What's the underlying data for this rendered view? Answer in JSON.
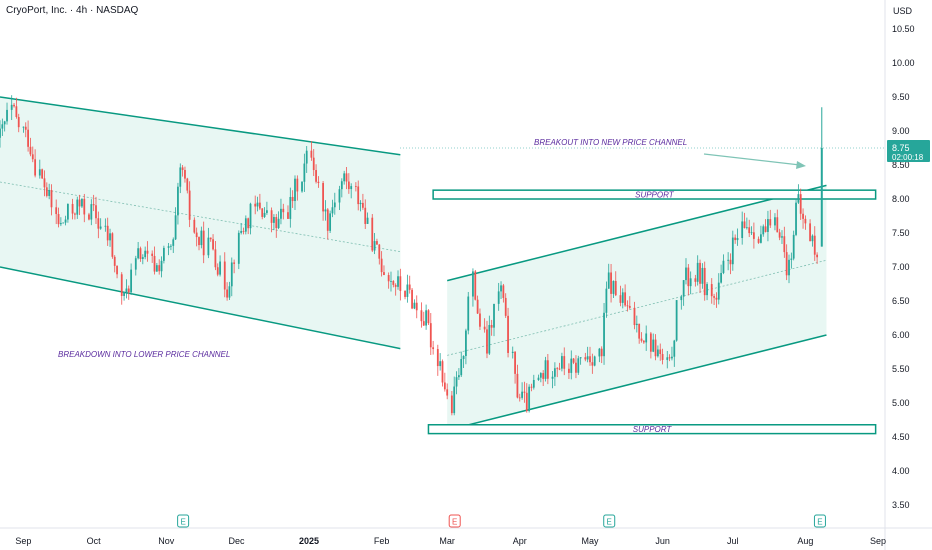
{
  "header": {
    "symbol": "CryoPort, Inc.",
    "separator": "·",
    "interval": "4h",
    "exchange": "NASDAQ",
    "currency": "USD"
  },
  "price_label": {
    "price": "8.75",
    "countdown": "02:00:18"
  },
  "colors": {
    "up": "#26a69a",
    "down": "#ef5350",
    "channel": "#089981",
    "channel_fill": "#e8f7f3",
    "annotation_text": "#5b2c9f",
    "axis_text": "#131722",
    "earnings_green": "#26a69a",
    "earnings_red": "#ef5350"
  },
  "chart_data": {
    "type": "candlestick",
    "title": "CryoPort, Inc. · 4h · NASDAQ",
    "y_axis": {
      "unit": "USD",
      "ticks": [
        "10.50",
        "10.00",
        "9.50",
        "9.00",
        "8.50",
        "8.00",
        "7.50",
        "7.00",
        "6.50",
        "6.00",
        "5.50",
        "5.00",
        "4.50",
        "4.00",
        "3.50"
      ],
      "ylim": [
        3.2,
        10.8
      ],
      "side": "right"
    },
    "x_axis": {
      "ticks": [
        "Sep",
        "Oct",
        "Nov",
        "Dec",
        "2025",
        "Feb",
        "Mar",
        "Apr",
        "May",
        "Jun",
        "Jul",
        "Aug",
        "Sep"
      ],
      "range": [
        "2024-08-22",
        "2025-09-04"
      ]
    },
    "price_path": [
      [
        "2024-08-22",
        8.9
      ],
      [
        "2024-08-27",
        9.3
      ],
      [
        "2024-09-03",
        8.9
      ],
      [
        "2024-09-10",
        8.2
      ],
      [
        "2024-09-17",
        7.6
      ],
      [
        "2024-09-24",
        7.9
      ],
      [
        "2024-10-01",
        7.8
      ],
      [
        "2024-10-08",
        7.4
      ],
      [
        "2024-10-14",
        6.5
      ],
      [
        "2024-10-21",
        7.2
      ],
      [
        "2024-10-28",
        7.0
      ],
      [
        "2024-11-04",
        7.3
      ],
      [
        "2024-11-08",
        8.4
      ],
      [
        "2024-11-14",
        7.4
      ],
      [
        "2024-11-21",
        7.3
      ],
      [
        "2024-11-27",
        6.7
      ],
      [
        "2024-12-04",
        7.6
      ],
      [
        "2024-12-11",
        7.9
      ],
      [
        "2024-12-18",
        7.6
      ],
      [
        "2024-12-24",
        7.9
      ],
      [
        "2025-01-02",
        8.7
      ],
      [
        "2025-01-09",
        7.7
      ],
      [
        "2025-01-16",
        8.3
      ],
      [
        "2025-01-23",
        8.0
      ],
      [
        "2025-01-30",
        7.2
      ],
      [
        "2025-02-06",
        6.8
      ],
      [
        "2025-02-13",
        6.6
      ],
      [
        "2025-02-20",
        6.2
      ],
      [
        "2025-02-26",
        5.6
      ],
      [
        "2025-03-03",
        4.9
      ],
      [
        "2025-03-07",
        5.5
      ],
      [
        "2025-03-12",
        6.8
      ],
      [
        "2025-03-18",
        5.8
      ],
      [
        "2025-03-24",
        6.7
      ],
      [
        "2025-03-31",
        5.2
      ],
      [
        "2025-04-04",
        5.0
      ],
      [
        "2025-04-10",
        5.4
      ],
      [
        "2025-04-17",
        5.6
      ],
      [
        "2025-04-24",
        5.5
      ],
      [
        "2025-04-30",
        5.7
      ],
      [
        "2025-05-06",
        5.7
      ],
      [
        "2025-05-09",
        6.8
      ],
      [
        "2025-05-15",
        6.5
      ],
      [
        "2025-05-22",
        6.1
      ],
      [
        "2025-05-29",
        5.8
      ],
      [
        "2025-06-04",
        5.5
      ],
      [
        "2025-06-10",
        6.8
      ],
      [
        "2025-06-17",
        6.9
      ],
      [
        "2025-06-24",
        6.5
      ],
      [
        "2025-06-30",
        7.2
      ],
      [
        "2025-07-07",
        7.6
      ],
      [
        "2025-07-14",
        7.5
      ],
      [
        "2025-07-21",
        7.6
      ],
      [
        "2025-07-25",
        7.0
      ],
      [
        "2025-07-29",
        7.9
      ],
      [
        "2025-08-04",
        7.4
      ],
      [
        "2025-08-07",
        7.0
      ]
    ],
    "breakout_candle": {
      "date": "2025-08-08",
      "open": 7.3,
      "high": 9.35,
      "low": 7.3,
      "close": 8.75
    },
    "current_price": 8.75,
    "trendlines": [
      {
        "name": "upper-descending-channel",
        "from": [
          "2024-08-22",
          9.5
        ],
        "to": [
          "2025-02-09",
          8.65
        ]
      },
      {
        "name": "lower-descending-channel",
        "from": [
          "2024-08-22",
          7.0
        ],
        "to": [
          "2025-02-09",
          5.8
        ]
      },
      {
        "name": "upper-ascending-channel",
        "from": [
          "2025-03-01",
          6.8
        ],
        "to": [
          "2025-08-10",
          8.2
        ]
      },
      {
        "name": "lower-ascending-channel",
        "from": [
          "2025-03-01",
          4.6
        ],
        "to": [
          "2025-08-10",
          6.0
        ]
      }
    ],
    "support_zones": [
      {
        "label": "SUPPORT",
        "from": "2025-02-23",
        "to": "2025-08-31",
        "low": 8.0,
        "high": 8.13
      },
      {
        "label": "SUPPORT",
        "from": "2025-02-21",
        "to": "2025-08-31",
        "low": 4.55,
        "high": 4.68
      }
    ],
    "annotations": [
      {
        "text": "BREAKDOWN INTO LOWER PRICE CHANNEL"
      },
      {
        "text": "BREAKOUT INTO NEW PRICE CHANNEL"
      }
    ],
    "earnings_markers": [
      {
        "date": "2024-11-08",
        "label": "E",
        "color": "green"
      },
      {
        "date": "2025-03-04",
        "label": "E",
        "color": "red"
      },
      {
        "date": "2025-05-09",
        "label": "E",
        "color": "green"
      },
      {
        "date": "2025-08-07",
        "label": "E",
        "color": "green"
      }
    ],
    "grid": false,
    "legend": "none"
  }
}
